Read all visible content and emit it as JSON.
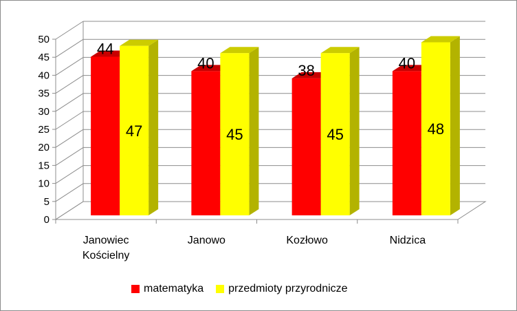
{
  "chart_data": {
    "type": "bar",
    "categories": [
      "Janowiec Kościelny",
      "Janowo",
      "Kozłowo",
      "Nidzica"
    ],
    "category_lines": [
      [
        "Janowiec",
        "Kościelny"
      ],
      [
        "Janowo"
      ],
      [
        "Kozłowo"
      ],
      [
        "Nidzica"
      ]
    ],
    "series": [
      {
        "name": "matematyka",
        "values": [
          44,
          40,
          38,
          40
        ],
        "color": "#ff0000",
        "side_color": "#b30000",
        "top_color": "#c80000"
      },
      {
        "name": "przedmioty przyrodnicze",
        "values": [
          47,
          45,
          45,
          48
        ],
        "color": "#ffff00",
        "side_color": "#b3b300",
        "top_color": "#cccc00"
      }
    ],
    "y_ticks": [
      0,
      5,
      10,
      15,
      20,
      25,
      30,
      35,
      40,
      45,
      50
    ],
    "ylim": [
      0,
      50
    ],
    "grid": true,
    "legend": "bottom",
    "style": "3d-clustered-column"
  }
}
